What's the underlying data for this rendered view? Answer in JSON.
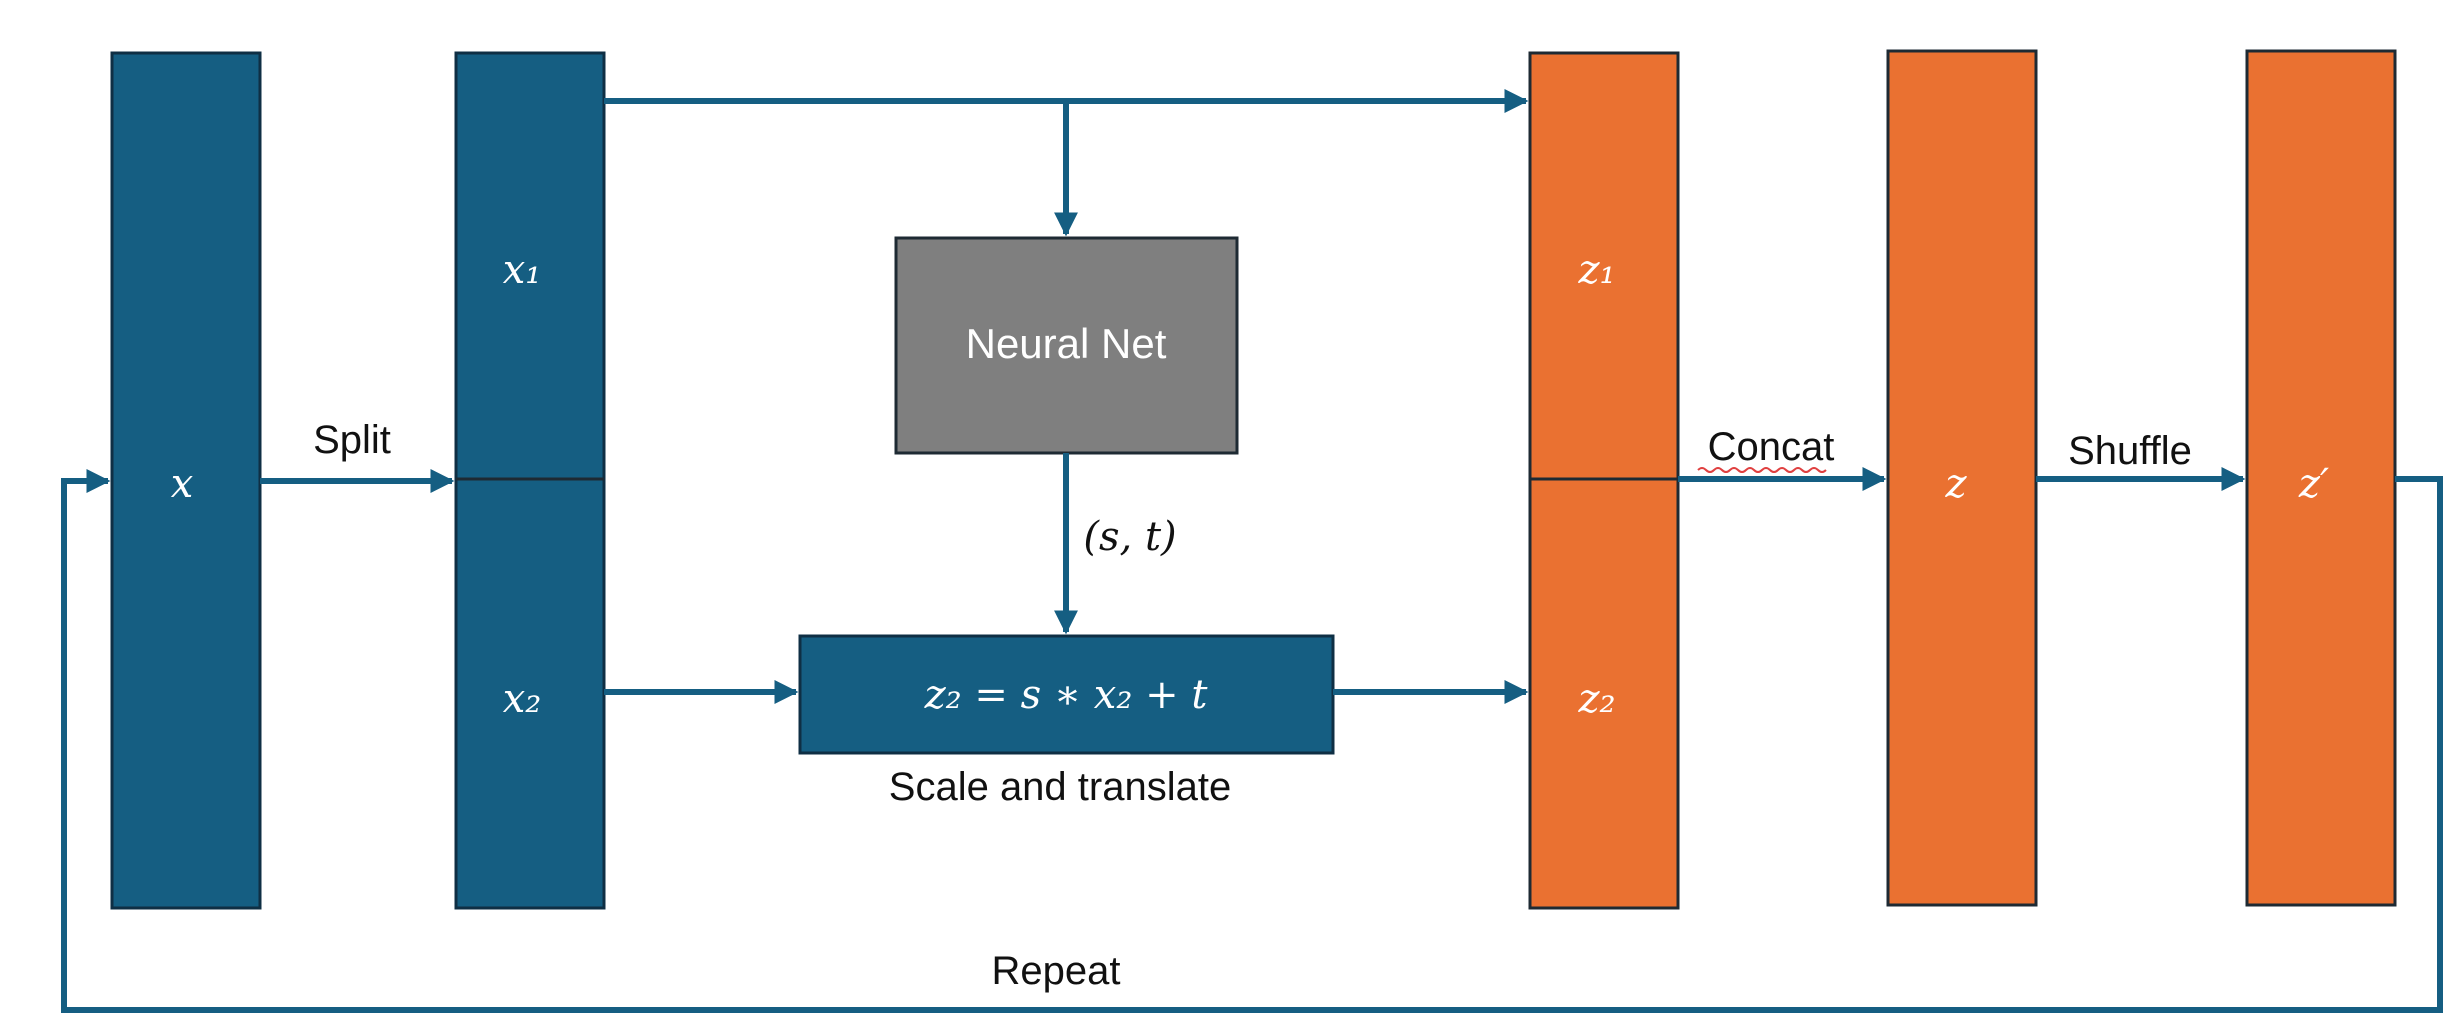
{
  "blocks": {
    "x": "x",
    "x1": "x₁",
    "x2": "x₂",
    "neural_net": "Neural Net",
    "scale_translate_formula": "z₂ = s ∗ x₂ + t",
    "z1": "z₁",
    "z2": "z₂",
    "z": "z",
    "z_prime": "z′"
  },
  "labels": {
    "split": "Split",
    "params": "(s, t)",
    "scale_and_translate": "Scale and translate",
    "concat": "Concat",
    "shuffle": "Shuffle",
    "repeat": "Repeat"
  },
  "colors": {
    "blue": "#155E82",
    "orange": "#EA7131",
    "gray": "#7F7F7F"
  }
}
